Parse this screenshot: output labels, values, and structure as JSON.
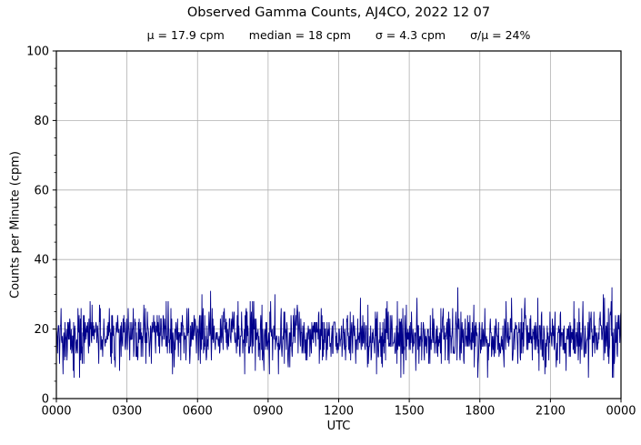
{
  "title": "Observed Gamma Counts, AJ4CO, 2022 12 07",
  "subtitle": {
    "segments": [
      "μ = 17.9 cpm",
      "median = 18 cpm",
      "σ = 4.3 cpm",
      "σ/μ = 24%"
    ]
  },
  "chart_data": {
    "type": "line",
    "title": "Observed Gamma Counts, AJ4CO, 2022 12 07",
    "xlabel": "UTC",
    "ylabel": "Counts per Minute (cpm)",
    "x_tick_labels": [
      "0000",
      "0300",
      "0600",
      "0900",
      "1200",
      "1500",
      "1800",
      "2100",
      "0000"
    ],
    "x_tick_interval_minutes": 180,
    "x_span_minutes": 1440,
    "y_ticks": [
      0,
      20,
      40,
      60,
      80,
      100
    ],
    "y_minor_step": 5,
    "ylim": [
      0,
      100
    ],
    "grid": true,
    "legend_position": "none",
    "stats": {
      "mean_cpm": 17.9,
      "median_cpm": 18,
      "sigma_cpm": 4.3,
      "sigma_over_mu_percent": 24
    },
    "series": [
      {
        "name": "observed gamma counts (1 sample per minute)",
        "n_points": 1440,
        "mean": 17.9,
        "sigma": 4.3,
        "observed_min": 6,
        "observed_max": 32,
        "distribution": "poisson-like integer counts, stationary all day",
        "seed": 20221207
      }
    ],
    "colors": {
      "line": "#00008B",
      "grid": "#b0b0b0",
      "frame": "#000000",
      "background": "#ffffff"
    }
  }
}
